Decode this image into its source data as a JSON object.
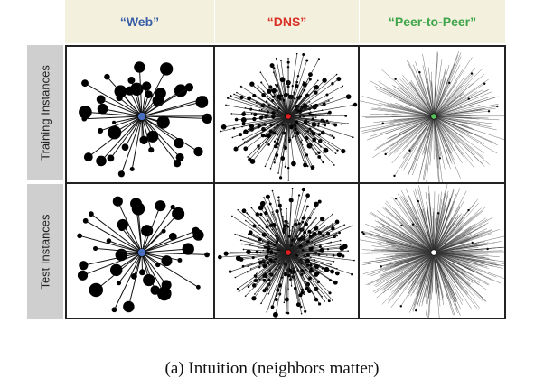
{
  "columns": [
    {
      "label": "“Web”",
      "color": "#3a5fa8"
    },
    {
      "label": "“DNS”",
      "color": "#d93025"
    },
    {
      "label": "“Peer-to-Peer”",
      "color": "#3fa54a"
    }
  ],
  "rows": [
    {
      "label": "Training Instances"
    },
    {
      "label": "Test Instances"
    }
  ],
  "cells": [
    [
      {
        "style": "web",
        "center_color": "#4a6fbf",
        "spokes": 42
      },
      {
        "style": "dns",
        "center_color": "#e02020",
        "spokes": 190
      },
      {
        "style": "p2p",
        "center_color": "#5cc25c",
        "spokes": 220
      }
    ],
    [
      {
        "style": "web",
        "center_color": "#4a6fbf",
        "spokes": 38
      },
      {
        "style": "dns",
        "center_color": "#e02020",
        "spokes": 230
      },
      {
        "style": "p2p",
        "center_color": "#ffffff",
        "spokes": 420
      }
    ]
  ],
  "caption": "(a) Intuition (neighbors matter)"
}
